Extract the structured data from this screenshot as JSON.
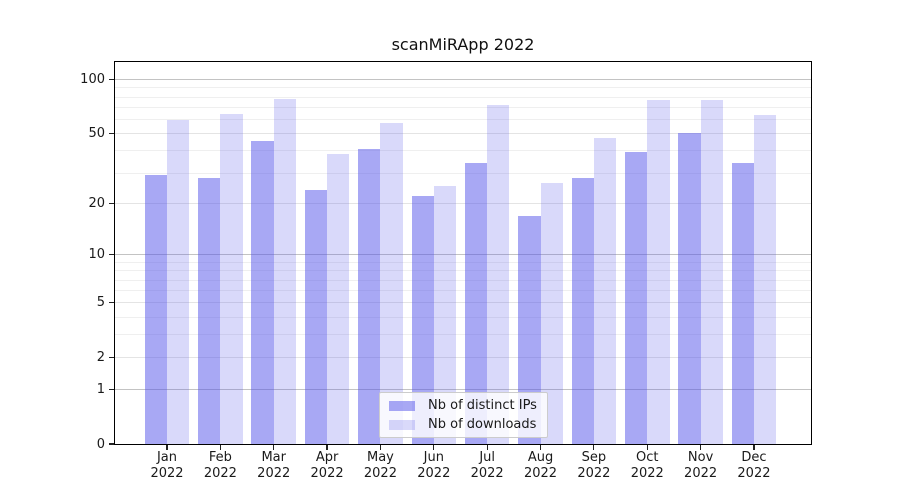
{
  "title": "scanMiRApp 2022",
  "chart_data": {
    "type": "bar",
    "title": "scanMiRApp 2022",
    "categories": [
      "Jan",
      "Feb",
      "Mar",
      "Apr",
      "May",
      "Jun",
      "Jul",
      "Aug",
      "Sep",
      "Oct",
      "Nov",
      "Dec"
    ],
    "x_year": "2022",
    "series": [
      {
        "name": "Nb of distinct IPs",
        "color": "rgba(82,82,234,0.5)",
        "values": [
          29,
          28,
          45,
          24,
          41,
          22,
          34,
          17,
          28,
          39,
          50,
          34
        ]
      },
      {
        "name": "Nb of downloads",
        "color": "rgba(82,82,234,0.22)",
        "values": [
          59,
          64,
          78,
          38,
          57,
          25,
          72,
          26,
          47,
          77,
          77,
          63
        ]
      }
    ],
    "y_axis": {
      "scale": "log1p",
      "tick_values": [
        100,
        50,
        20,
        10,
        5,
        2,
        1,
        0
      ],
      "tick_labels": [
        "100",
        "50",
        "20",
        "10",
        "5",
        "2",
        "1",
        "0"
      ],
      "major_dark_ticks": [
        1,
        10,
        100
      ],
      "major_light_ticks": [
        2,
        5,
        20,
        50
      ],
      "minor_ticks": [
        3,
        4,
        6,
        7,
        8,
        9,
        30,
        40,
        60,
        70,
        80,
        90
      ],
      "ylim": [
        0,
        124
      ]
    },
    "legend_position": "lower center",
    "grid": true
  },
  "colors": {
    "bar_ips": "rgba(82,82,234,0.5)",
    "bar_downloads": "rgba(82,82,234,0.22)",
    "grid_major_dark": "#c3c3c3",
    "grid_major_light": "#e4e4e4",
    "grid_minor": "#efefef",
    "spine": "#000000",
    "text": "#1a1a1a"
  }
}
